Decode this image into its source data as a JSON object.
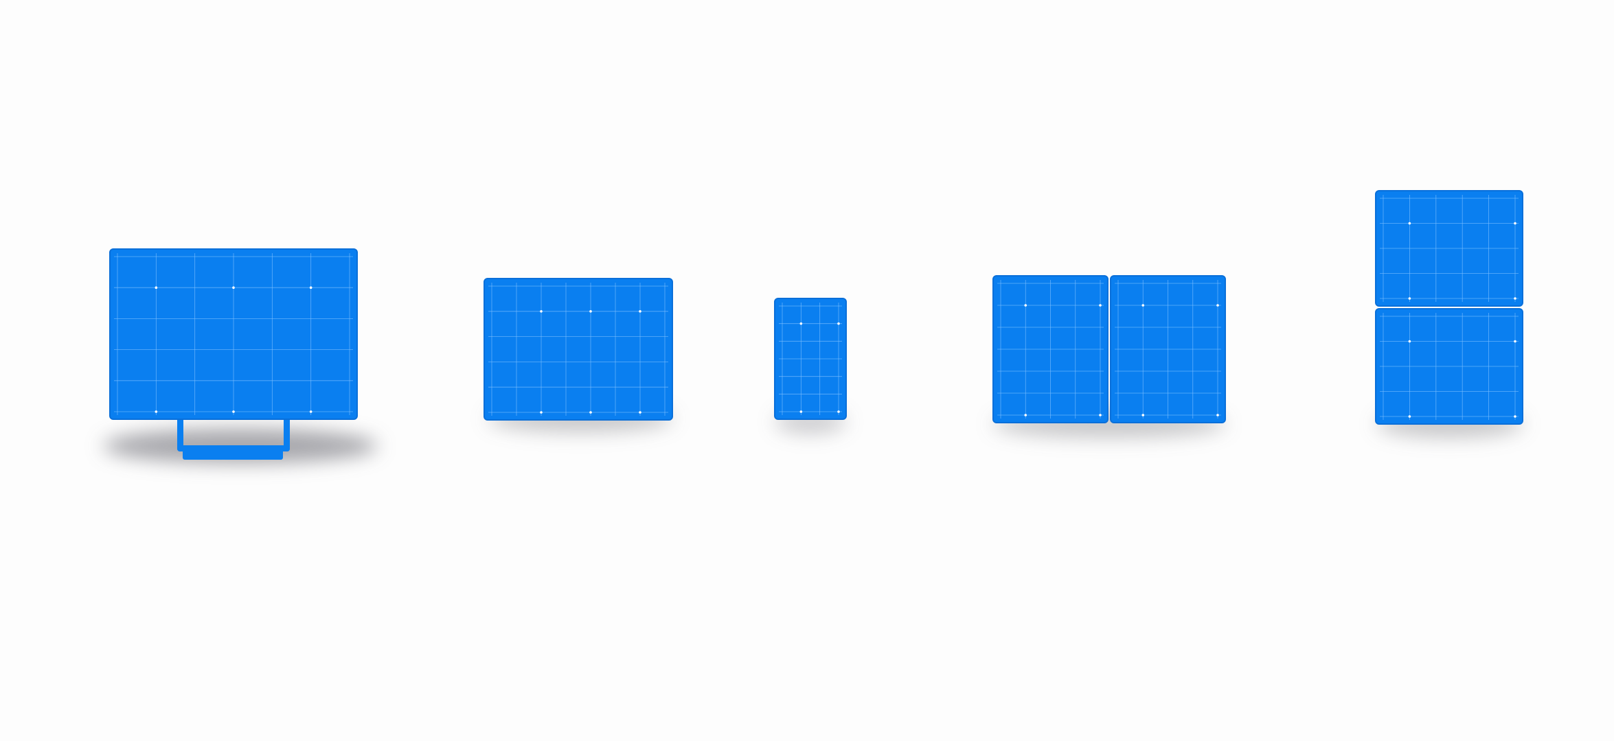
{
  "scene": {
    "description_label": "",
    "colors": {
      "background": "#fdfdfd",
      "screen": "#0a7ff0",
      "screen_edge": "#0a6fd9",
      "grid_line": "#7fc0ff",
      "grid_dot": "#ffffff",
      "shadow": "rgba(60,60,70,0.35)"
    }
  },
  "devices": [
    {
      "kind": "desktop-monitor",
      "icon": "monitor-icon"
    },
    {
      "kind": "tablet-landscape",
      "icon": "tablet-icon"
    },
    {
      "kind": "phone-portrait",
      "icon": "phone-icon"
    },
    {
      "kind": "foldable-side-by-side",
      "icon": "dual-screen-horizontal-icon"
    },
    {
      "kind": "foldable-stacked",
      "icon": "dual-screen-vertical-icon"
    }
  ]
}
